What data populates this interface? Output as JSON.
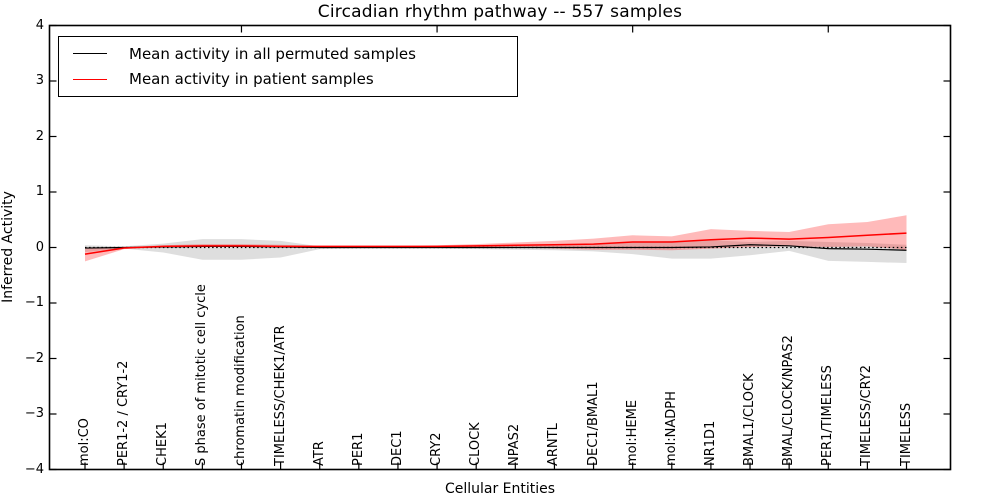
{
  "title": "Circadian rhythm pathway -- 557 samples",
  "chart_data": {
    "type": "line",
    "title": "Circadian rhythm pathway -- 557 samples",
    "xlabel": "Cellular Entities",
    "ylabel": "Inferred Activity",
    "ylim": [
      -4,
      4
    ],
    "ytick_labels": [
      "4",
      "3",
      "2",
      "1",
      "0",
      "−1",
      "−2",
      "−3",
      "−4"
    ],
    "ytick_values": [
      4,
      3,
      2,
      1,
      0,
      -1,
      -2,
      -3,
      -4
    ],
    "grid": false,
    "legend_position": "upper left",
    "zero_line_style": "dotted",
    "top_tick_indices": [
      4,
      9,
      14,
      19
    ],
    "categories": [
      "mol:CO",
      "PER1-2 / CRY1-2",
      "CHEK1",
      "S phase of mitotic cell cycle",
      "chromatin modification",
      "TIMELESS/CHEK1/ATR",
      "ATR",
      "PER1",
      "DEC1",
      "CRY2",
      "CLOCK",
      "NPAS2",
      "ARNTL",
      "DEC1/BMAL1",
      "mol:HEME",
      "mol:NADPH",
      "NR1D1",
      "BMAL1/CLOCK",
      "BMAL/CLOCK/NPAS2",
      "PER1/TIMELESS",
      "TIMELESS/CRY2",
      "TIMELESS"
    ],
    "series": [
      {
        "name": "Mean activity in all permuted samples",
        "color": "#000000",
        "band_color": "rgba(0,0,0,0.13)",
        "values": [
          -0.01,
          0.0,
          0.01,
          0.02,
          0.02,
          0.01,
          0.0,
          0.0,
          0.0,
          0.0,
          0.0,
          0.0,
          0.0,
          0.0,
          0.0,
          0.0,
          0.01,
          0.05,
          0.03,
          -0.02,
          -0.03,
          -0.05
        ],
        "band_low": [
          -0.08,
          -0.02,
          -0.09,
          -0.22,
          -0.22,
          -0.18,
          -0.03,
          -0.02,
          -0.02,
          -0.02,
          -0.03,
          -0.04,
          -0.05,
          -0.07,
          -0.12,
          -0.2,
          -0.2,
          -0.14,
          -0.06,
          -0.24,
          -0.26,
          -0.28
        ],
        "band_high": [
          0.04,
          0.02,
          0.07,
          0.15,
          0.15,
          0.12,
          0.02,
          0.01,
          0.01,
          0.02,
          0.02,
          0.03,
          0.04,
          0.05,
          0.09,
          0.12,
          0.13,
          0.1,
          0.12,
          0.1,
          0.08,
          0.05
        ]
      },
      {
        "name": "Mean activity in patient samples",
        "color": "#ff0000",
        "band_color": "rgba(255,0,0,0.27)",
        "values": [
          -0.12,
          -0.01,
          0.02,
          0.03,
          0.03,
          0.02,
          0.02,
          0.02,
          0.02,
          0.02,
          0.03,
          0.04,
          0.05,
          0.06,
          0.1,
          0.1,
          0.14,
          0.17,
          0.15,
          0.18,
          0.22,
          0.26
        ],
        "band_low": [
          -0.25,
          -0.03,
          0.0,
          0.01,
          0.01,
          0.0,
          0.0,
          0.01,
          0.01,
          0.0,
          0.0,
          0.0,
          -0.02,
          -0.04,
          -0.04,
          -0.05,
          -0.02,
          0.01,
          0.02,
          0.01,
          0.02,
          -0.04
        ],
        "band_high": [
          -0.02,
          0.01,
          0.04,
          0.06,
          0.06,
          0.05,
          0.03,
          0.03,
          0.03,
          0.04,
          0.06,
          0.09,
          0.12,
          0.16,
          0.22,
          0.2,
          0.33,
          0.3,
          0.28,
          0.42,
          0.46,
          0.58
        ]
      }
    ]
  }
}
